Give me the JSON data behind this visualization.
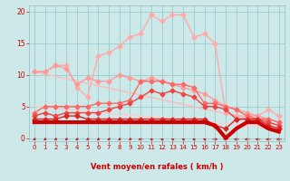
{
  "bg_color": "#cce8e8",
  "grid_color": "#99cccc",
  "xlabel": "Vent moyen/en rafales ( km/h )",
  "xlim": [
    -0.5,
    23.5
  ],
  "ylim": [
    -0.5,
    21
  ],
  "yticks": [
    0,
    5,
    10,
    15,
    20
  ],
  "xticks": [
    0,
    1,
    2,
    3,
    4,
    5,
    6,
    7,
    8,
    9,
    10,
    11,
    12,
    13,
    14,
    15,
    16,
    17,
    18,
    19,
    20,
    21,
    22,
    23
  ],
  "lines": [
    {
      "x": [
        0,
        1,
        2,
        3,
        4,
        5,
        6,
        7,
        8,
        9,
        10,
        11,
        12,
        13,
        14,
        15,
        16,
        17,
        18,
        19,
        20,
        21,
        22,
        23
      ],
      "y": [
        10.5,
        10.5,
        11.5,
        11.5,
        8.0,
        6.5,
        13.0,
        13.5,
        14.5,
        16.0,
        16.5,
        19.5,
        18.5,
        19.5,
        19.5,
        16.0,
        16.5,
        15.0,
        4.0,
        3.5,
        3.5,
        3.5,
        4.5,
        3.5
      ],
      "color": "#ffaaaa",
      "lw": 1.0,
      "marker": "D",
      "ms": 2.5,
      "zorder": 3
    },
    {
      "x": [
        0,
        1,
        2,
        3,
        4,
        5,
        6,
        7,
        8,
        9,
        10,
        11,
        12,
        13,
        14,
        15,
        16,
        17,
        18,
        19,
        20,
        21,
        22,
        23
      ],
      "y": [
        10.5,
        10.5,
        11.5,
        11.0,
        8.5,
        9.5,
        9.0,
        9.0,
        10.0,
        9.5,
        9.0,
        9.5,
        9.0,
        8.5,
        8.0,
        7.5,
        7.0,
        6.0,
        5.0,
        4.5,
        4.0,
        3.5,
        3.0,
        2.5
      ],
      "color": "#ff9999",
      "lw": 1.0,
      "marker": "D",
      "ms": 2.5,
      "zorder": 3
    },
    {
      "x": [
        0,
        23
      ],
      "y": [
        10.5,
        2.0
      ],
      "color": "#ffbbbb",
      "lw": 1.0,
      "marker": null,
      "ms": 0,
      "zorder": 2
    },
    {
      "x": [
        0,
        1,
        2,
        3,
        4,
        5,
        6,
        7,
        8,
        9,
        10,
        11,
        12,
        13,
        14,
        15,
        16,
        17,
        18,
        19,
        20,
        21,
        22,
        23
      ],
      "y": [
        4.0,
        5.0,
        5.0,
        5.0,
        5.0,
        5.0,
        5.5,
        5.5,
        5.5,
        6.0,
        9.0,
        9.0,
        9.0,
        8.5,
        8.5,
        8.0,
        5.5,
        5.5,
        5.0,
        4.5,
        3.5,
        3.0,
        3.0,
        2.5
      ],
      "color": "#ff6666",
      "lw": 1.0,
      "marker": "D",
      "ms": 2.5,
      "zorder": 3
    },
    {
      "x": [
        0,
        23
      ],
      "y": [
        5.0,
        1.5
      ],
      "color": "#ffcccc",
      "lw": 1.0,
      "marker": null,
      "ms": 0,
      "zorder": 2
    },
    {
      "x": [
        0,
        1,
        2,
        3,
        4,
        5,
        6,
        7,
        8,
        9,
        10,
        11,
        12,
        13,
        14,
        15,
        16,
        17,
        18,
        19,
        20,
        21,
        22,
        23
      ],
      "y": [
        3.5,
        4.0,
        3.5,
        4.0,
        4.0,
        4.0,
        4.0,
        4.5,
        5.0,
        5.5,
        6.5,
        7.5,
        7.0,
        7.5,
        7.0,
        6.5,
        5.0,
        5.0,
        4.5,
        3.0,
        3.0,
        3.0,
        2.5,
        2.0
      ],
      "color": "#ee4444",
      "lw": 1.0,
      "marker": "D",
      "ms": 2.5,
      "zorder": 3
    },
    {
      "x": [
        0,
        1,
        2,
        3,
        4,
        5,
        6,
        7,
        8,
        9,
        10,
        11,
        12,
        13,
        14,
        15,
        16,
        17,
        18,
        19,
        20,
        21,
        22,
        23
      ],
      "y": [
        3.0,
        3.0,
        3.0,
        3.5,
        3.5,
        3.0,
        3.0,
        3.0,
        3.0,
        3.0,
        3.0,
        3.0,
        3.0,
        3.0,
        3.0,
        3.0,
        3.0,
        2.0,
        1.5,
        3.0,
        3.0,
        3.0,
        2.0,
        1.5
      ],
      "color": "#dd2222",
      "lw": 1.0,
      "marker": "D",
      "ms": 2.5,
      "zorder": 3
    },
    {
      "x": [
        0,
        1,
        2,
        3,
        4,
        5,
        6,
        7,
        8,
        9,
        10,
        11,
        12,
        13,
        14,
        15,
        16,
        17,
        18,
        19,
        20,
        21,
        22,
        23
      ],
      "y": [
        2.5,
        2.5,
        2.5,
        2.5,
        2.5,
        2.5,
        2.5,
        2.5,
        2.5,
        2.5,
        2.5,
        2.5,
        2.5,
        2.5,
        2.5,
        2.5,
        2.5,
        2.0,
        0.0,
        1.5,
        2.5,
        2.5,
        1.5,
        1.0
      ],
      "color": "#cc0000",
      "lw": 3.0,
      "marker": null,
      "ms": 0,
      "zorder": 4
    }
  ],
  "wind_arrows": {
    "x": [
      0,
      1,
      2,
      3,
      4,
      5,
      6,
      7,
      8,
      9,
      10,
      11,
      12,
      13,
      14,
      15,
      16,
      17,
      18,
      19,
      20,
      21,
      22,
      23
    ],
    "angles_deg": [
      225,
      225,
      225,
      225,
      225,
      225,
      225,
      225,
      225,
      225,
      270,
      315,
      315,
      315,
      315,
      315,
      315,
      90,
      270,
      270,
      270,
      270,
      270,
      270
    ]
  }
}
